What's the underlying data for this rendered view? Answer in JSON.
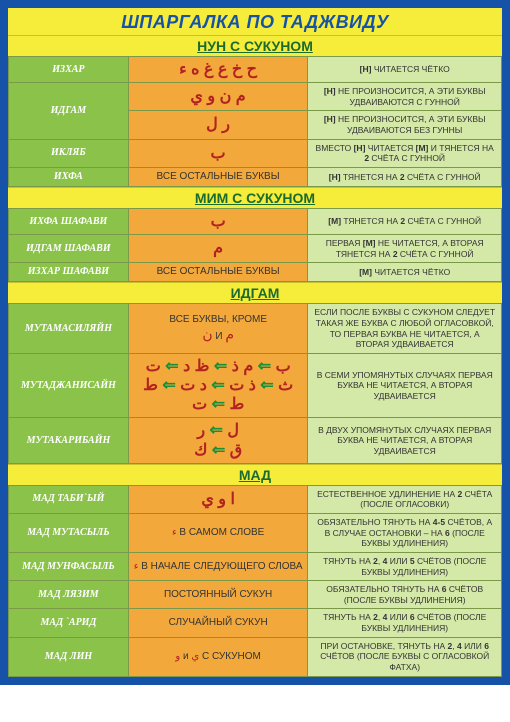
{
  "title": "ШПАРГАЛКА ПО ТАДЖВИДУ",
  "colors": {
    "border": "#1552a8",
    "yellow": "#f5ed3a",
    "green_cell": "#8bc34a",
    "orange_cell": "#f2a83a",
    "lightgreen_cell": "#d4e8a8",
    "arabic_red": "#b22222",
    "header_green": "#1b6b2f"
  },
  "sections": [
    {
      "header": "НУН С СУКУНОМ",
      "rows": [
        {
          "c1": "ИЗХАР",
          "c2": "ح خ ع غ ه ء",
          "c2class": "arabic",
          "c3": "[Н] ЧИТАЕТСЯ ЧЁТКО"
        },
        {
          "c1": "ИДГАМ",
          "rowspan": 2,
          "c2": "م ن و ي",
          "c2class": "arabic",
          "c3": "[Н] НЕ ПРОИЗНОСИТСЯ, А ЭТИ БУКВЫ УДВАИВАЮТСЯ С ГУННОЙ"
        },
        {
          "skip_c1": true,
          "c2": "ر ل",
          "c2class": "arabic",
          "c3": "[Н] НЕ ПРОИЗНОСИТСЯ, А ЭТИ БУКВЫ УДВАИВАЮТСЯ БЕЗ ГУННЫ"
        },
        {
          "c1": "ИКЛЯБ",
          "c2": "ب",
          "c2class": "arabic",
          "c3": "ВМЕСТО [Н] ЧИТАЕТСЯ [М] И ТЯНЕТСЯ НА 2 СЧЁТА С ГУННОЙ"
        },
        {
          "c1": "ИХФА",
          "c2": "ВСЕ ОСТАЛЬНЫЕ БУКВЫ",
          "c2class": "mixed",
          "c3": "[Н] ТЯНЕТСЯ НА 2 СЧЁТА С ГУННОЙ"
        }
      ]
    },
    {
      "header": "МИМ С СУКУНОМ",
      "rows": [
        {
          "c1": "ИХФА ШАФАВИ",
          "c2": "ب",
          "c2class": "arabic",
          "c3": "[М] ТЯНЕТСЯ НА 2 СЧЁТА С ГУННОЙ"
        },
        {
          "c1": "ИДГАМ ШАФАВИ",
          "c2": "م",
          "c2class": "arabic",
          "c3": "ПЕРВАЯ [М] НЕ ЧИТАЕТСЯ, А ВТОРАЯ ТЯНЕТСЯ НА 2 СЧЁТА С ГУННОЙ"
        },
        {
          "c1": "ИЗХАР ШАФАВИ",
          "c2": "ВСЕ ОСТАЛЬНЫЕ БУКВЫ",
          "c2class": "mixed",
          "c3": "[М] ЧИТАЕТСЯ ЧЁТКО"
        }
      ]
    },
    {
      "header": "ИДГАМ",
      "rows": [
        {
          "c1": "МУТАМАСИЛЯЙН",
          "c2_html": "ВСЕ БУКВЫ, КРОМЕ<br><span class='red' style='font-size:14px'>ن</span> И <span class='red' style='font-size:14px'>م</span>",
          "c2class": "mixed",
          "c3": "ЕСЛИ ПОСЛЕ БУКВЫ С СУКУНОМ СЛЕДУЕТ ТАКАЯ ЖЕ БУКВА С ЛЮБОЙ ОГЛАСОВКОЙ, ТО ПЕРВАЯ БУКВА НЕ ЧИТАЕТСЯ, А ВТОРАЯ УДВАИВАЕТСЯ"
        },
        {
          "c1": "МУТАДЖАНИСАЙН",
          "c2_html": "<span class='red'>ب</span> <span class='arrow'>⇐</span> <span class='red'>م ذ</span> <span class='arrow'>⇐</span> <span class='red'>ظ د</span> <span class='arrow'>⇐</span> <span class='red'>ت</span><br><span class='red'>ث</span> <span class='arrow'>⇐</span> <span class='red'>ذ ت</span> <span class='arrow'>⇐</span> <span class='red'>د ت</span> <span class='arrow'>⇐</span> <span class='red'>ط</span><br><span class='red'>ط</span> <span class='arrow'>⇐</span> <span class='red'>ت</span>",
          "c2class": "arabic",
          "c3": "В СЕМИ УПОМЯНУТЫХ СЛУЧАЯХ ПЕРВАЯ БУКВА НЕ ЧИТАЕТСЯ, А ВТОРАЯ УДВАИВАЕТСЯ"
        },
        {
          "c1": "МУТАКАРИБАЙН",
          "c2_html": "<span class='red'>ل</span> <span class='arrow'>⇐</span> <span class='red'>ر</span><br><span class='red'>ق</span> <span class='arrow'>⇐</span> <span class='red'>ك</span>",
          "c2class": "arabic",
          "c3": "В ДВУХ УПОМЯНУТЫХ СЛУЧАЯХ ПЕРВАЯ БУКВА НЕ ЧИТАЕТСЯ, А ВТОРАЯ УДВАИВАЕТСЯ"
        }
      ]
    },
    {
      "header": "МАД",
      "rows": [
        {
          "c1": "МАД ТАБИ`ЫЙ",
          "c2": "ا و ي",
          "c2class": "arabic",
          "c3": "ЕСТЕСТВЕННОЕ УДЛИНЕНИЕ НА 2 СЧЁТА (ПОСЛЕ ОГЛАСОВКИ)"
        },
        {
          "c1": "МАД МУТАСЫЛЬ",
          "c2_html": "<span class='red'>ء</span> В САМОМ СЛОВЕ",
          "c2class": "mixed",
          "c3": "ОБЯЗАТЕЛЬНО ТЯНУТЬ НА 4-5 СЧЁТОВ, А В СЛУЧАЕ ОСТАНОВКИ – НА 6 (ПОСЛЕ БУКВЫ УДЛИНЕНИЯ)"
        },
        {
          "c1": "МАД МУНФАСЫЛЬ",
          "c2_html": "<span class='red'>ء</span> В НАЧАЛЕ СЛЕДУЮЩЕГО СЛОВА",
          "c2class": "mixed",
          "c3": "ТЯНУТЬ НА 2, 4 ИЛИ 5 СЧЁТОВ (ПОСЛЕ БУКВЫ УДЛИНЕНИЯ)"
        },
        {
          "c1": "МАД ЛЯЗИМ",
          "c2": "ПОСТОЯННЫЙ СУКУН",
          "c2class": "mixed",
          "c3": "ОБЯЗАТЕЛЬНО ТЯНУТЬ НА 6 СЧЁТОВ (ПОСЛЕ БУКВЫ УДЛИНЕНИЯ)"
        },
        {
          "c1": "МАД `АРИД",
          "c2": "СЛУЧАЙНЫЙ СУКУН",
          "c2class": "mixed",
          "c3": "ТЯНУТЬ НА 2, 4 ИЛИ 6 СЧЁТОВ (ПОСЛЕ БУКВЫ УДЛИНЕНИЯ)"
        },
        {
          "c1": "МАД ЛИН",
          "c2_html": "<span class='red'>و</span> и <span class='red'>ي</span> С СУКУНОМ",
          "c2class": "mixed",
          "c3": "ПРИ ОСТАНОВКЕ, ТЯНУТЬ НА 2, 4 ИЛИ 6 СЧЁТОВ (ПОСЛЕ БУКВЫ С ОГЛАСОВКОЙ ФАТХА)"
        }
      ]
    }
  ]
}
